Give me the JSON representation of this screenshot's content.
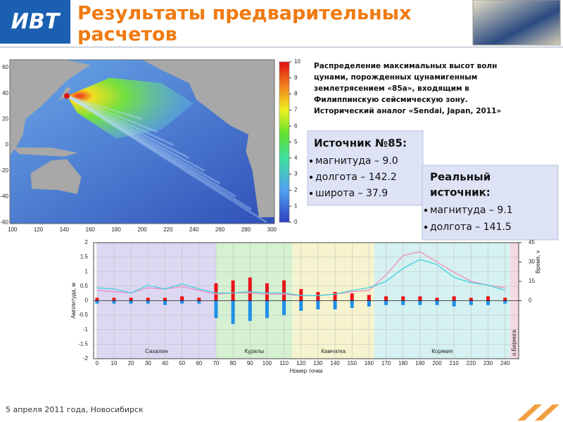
{
  "header": {
    "logo": "ИВТ",
    "title_lines": [
      "Результаты предварительных",
      "расчетов"
    ]
  },
  "map": {
    "xlim": [
      98,
      302
    ],
    "ylim": [
      -61,
      66
    ],
    "xticks": [
      100,
      120,
      140,
      160,
      180,
      200,
      220,
      240,
      260,
      280,
      300
    ],
    "yticks": [
      60,
      40,
      20,
      0,
      -20,
      -40,
      -60
    ],
    "colorbar_lim": [
      0,
      10
    ],
    "colorbar_ticks": [
      0,
      1,
      2,
      3,
      4,
      5,
      6,
      7,
      8,
      9,
      10
    ],
    "caption_lines": [
      "Распределение максимальных высот волн",
      "цунами, порожденных цунамигенным",
      "землетрясением «85a», входящим в",
      "Филиппинскую сейсмическую зону.",
      "Исторический аналог «Sendai, Japan, 2011»"
    ]
  },
  "source_box": {
    "title": "Источник №85:",
    "items": [
      "магнитуда – 9.0",
      "долгота – 142.2",
      "широта – 37.9"
    ]
  },
  "real_box": {
    "title_lines": [
      "Реальный",
      "источник:"
    ],
    "items": [
      "магнитуда – 9.1",
      "долгота – 141.5"
    ]
  },
  "chart_data": {
    "type": "line",
    "xlabel": "Номер точки",
    "ylabel": "Амплитуда, м",
    "y2label": "Время, ч",
    "xlim": [
      -2,
      248
    ],
    "ylim": [
      -2,
      2
    ],
    "y2lim": [
      -45,
      45
    ],
    "xticks": [
      0,
      10,
      20,
      30,
      40,
      50,
      60,
      70,
      80,
      90,
      100,
      110,
      120,
      130,
      140,
      150,
      160,
      170,
      180,
      190,
      200,
      210,
      220,
      230,
      240
    ],
    "yticks": [
      2,
      1.5,
      1,
      0.5,
      0,
      -0.5,
      -1,
      -1.5,
      -2
    ],
    "y2ticks": [
      0,
      15,
      30,
      45
    ],
    "grid": true,
    "regions": [
      {
        "name": "Сахалин",
        "start": 0,
        "end": 70,
        "color": "#dcd8f2"
      },
      {
        "name": "Курилы",
        "start": 70,
        "end": 115,
        "color": "#d6f0d2"
      },
      {
        "name": "Камчатка",
        "start": 115,
        "end": 163,
        "color": "#f6f4cf"
      },
      {
        "name": "Корякия",
        "start": 163,
        "end": 243,
        "color": "#d5f1f1"
      },
      {
        "name": "о.Беринга",
        "start": 243,
        "end": 248,
        "color": "#f5d9e2"
      }
    ],
    "x": [
      0,
      10,
      20,
      30,
      40,
      50,
      60,
      70,
      80,
      90,
      100,
      110,
      120,
      130,
      140,
      150,
      160,
      170,
      180,
      190,
      200,
      210,
      220,
      230,
      240
    ],
    "series": [
      {
        "color": "#e8141c",
        "style": "bar",
        "values": [
          0.1,
          0.1,
          0.1,
          0.1,
          0.1,
          0.15,
          0.1,
          0.6,
          0.7,
          0.8,
          0.6,
          0.7,
          0.4,
          0.3,
          0.3,
          0.25,
          0.2,
          0.15,
          0.15,
          0.15,
          0.1,
          0.15,
          0.1,
          0.15,
          0.1
        ]
      },
      {
        "color": "#1e90e8",
        "style": "bar",
        "values": [
          -0.1,
          -0.1,
          -0.1,
          -0.1,
          -0.15,
          -0.1,
          -0.1,
          -0.6,
          -0.8,
          -0.7,
          -0.6,
          -0.5,
          -0.35,
          -0.3,
          -0.3,
          -0.25,
          -0.2,
          -0.15,
          -0.15,
          -0.15,
          -0.15,
          -0.2,
          -0.15,
          -0.15,
          -0.1
        ]
      },
      {
        "color": "#f08cc0",
        "style": "line",
        "axis": "y2",
        "values": [
          8,
          7,
          6,
          10,
          9,
          11,
          8,
          5,
          6,
          6,
          5,
          5,
          4,
          4,
          5,
          7,
          8,
          20,
          35,
          38,
          30,
          22,
          15,
          12,
          10
        ]
      },
      {
        "color": "#40d0e0",
        "style": "line",
        "axis": "y2",
        "values": [
          10,
          9,
          6,
          12,
          9,
          13,
          9,
          6,
          6,
          7,
          6,
          6,
          4,
          4,
          5,
          8,
          10,
          15,
          25,
          32,
          28,
          18,
          14,
          12,
          8
        ]
      }
    ]
  },
  "footer": "5 апреля 2011 года, Новосибирск"
}
